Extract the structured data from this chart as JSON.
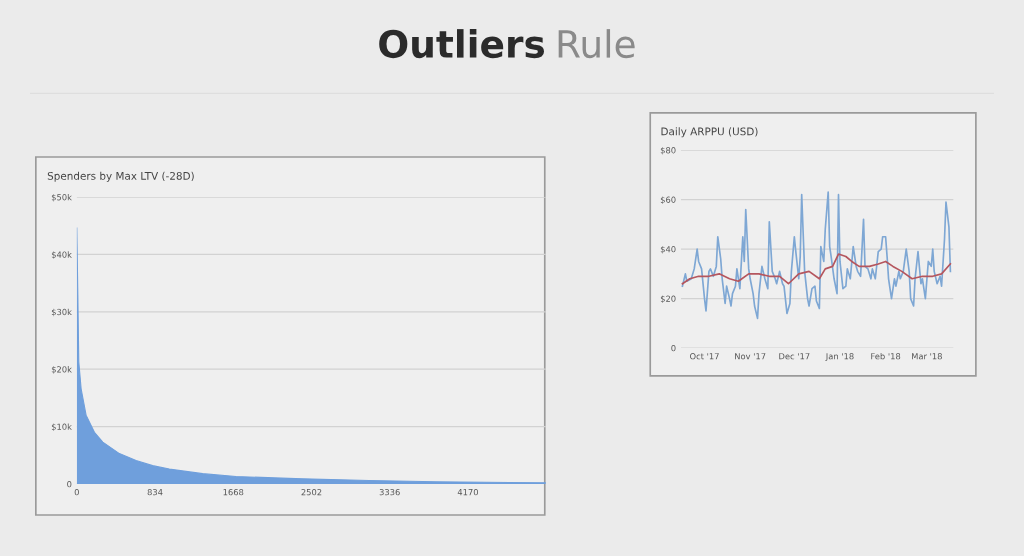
{
  "chart_data": [
    {
      "type": "other",
      "title": "Outliers",
      "subtitle": "Rule"
    },
    {
      "type": "area",
      "title": "Spenders by Max LTV (-28D)",
      "color": "#6f9fdc",
      "x": [
        0,
        11,
        21,
        46,
        99,
        188,
        277,
        454,
        632,
        809,
        987,
        1342,
        1697,
        2407,
        3117,
        3827,
        4998
      ],
      "values": [
        44600,
        33000,
        21300,
        16600,
        12000,
        9000,
        7300,
        5300,
        4100,
        3200,
        2600,
        1800,
        1300,
        900,
        600,
        400,
        200
      ],
      "xlim": [
        0,
        5000
      ],
      "xticks": [
        0,
        834,
        1668,
        2502,
        3336,
        4170
      ],
      "ylim": [
        0,
        50000
      ],
      "yticks": [
        0,
        {
          "value": 10000,
          "label": "$10k"
        },
        {
          "value": 20000,
          "label": "$20k"
        },
        {
          "value": 30000,
          "label": "$30k"
        },
        {
          "value": 40000,
          "label": "$40k"
        },
        {
          "value": 50000,
          "label": "$50k"
        }
      ],
      "grid": "y"
    },
    {
      "type": "line",
      "title": "Daily ARPPU (USD)",
      "grid": "y",
      "xlim": [
        "2017-09-29",
        "2018-04-02"
      ],
      "xticks": [
        {
          "value": "2017-10-15",
          "label": "Oct '17"
        },
        {
          "value": "2017-11-15",
          "label": "Nov '17"
        },
        {
          "value": "2017-12-15",
          "label": "Dec '17"
        },
        {
          "value": "2018-01-15",
          "label": "Jan '18"
        },
        {
          "value": "2018-02-15",
          "label": "Feb '18"
        },
        {
          "value": "2018-03-15",
          "label": "Mar '18"
        }
      ],
      "ylim": [
        0,
        80
      ],
      "yticks": [
        0,
        {
          "value": 20,
          "label": "$20"
        },
        {
          "value": 40,
          "label": "$40"
        },
        {
          "value": 60,
          "label": "$60"
        },
        {
          "value": 80,
          "label": "$80"
        }
      ],
      "series": [
        {
          "color": "#7ea7d4",
          "x": [
            "2017-09-30",
            "2017-10-02",
            "2017-10-03",
            "2017-10-06",
            "2017-10-08",
            "2017-10-10",
            "2017-10-11",
            "2017-10-13",
            "2017-10-15",
            "2017-10-16",
            "2017-10-18",
            "2017-10-19",
            "2017-10-21",
            "2017-10-23",
            "2017-10-24",
            "2017-10-26",
            "2017-10-27",
            "2017-10-29",
            "2017-10-30",
            "2017-11-01",
            "2017-11-02",
            "2017-11-03",
            "2017-11-05",
            "2017-11-06",
            "2017-11-08",
            "2017-11-10",
            "2017-11-11",
            "2017-11-12",
            "2017-11-14",
            "2017-11-15",
            "2017-11-17",
            "2017-11-18",
            "2017-11-20",
            "2017-11-21",
            "2017-11-23",
            "2017-11-25",
            "2017-11-27",
            "2017-11-28",
            "2017-11-30",
            "2017-12-02",
            "2017-12-03",
            "2017-12-05",
            "2017-12-07",
            "2017-12-08",
            "2017-12-10",
            "2017-12-12",
            "2017-12-13",
            "2017-12-15",
            "2017-12-16",
            "2017-12-18",
            "2017-12-19",
            "2017-12-20",
            "2017-12-22",
            "2017-12-24",
            "2017-12-25",
            "2017-12-27",
            "2017-12-29",
            "2017-12-30",
            "2018-01-01",
            "2018-01-02",
            "2018-01-04",
            "2018-01-05",
            "2018-01-07",
            "2018-01-08",
            "2018-01-09",
            "2018-01-11",
            "2018-01-13",
            "2018-01-14",
            "2018-01-15",
            "2018-01-17",
            "2018-01-19",
            "2018-01-20",
            "2018-01-22",
            "2018-01-24",
            "2018-01-26",
            "2018-01-27",
            "2018-01-29",
            "2018-01-31",
            "2018-02-01",
            "2018-02-03",
            "2018-02-05",
            "2018-02-06",
            "2018-02-08",
            "2018-02-10",
            "2018-02-12",
            "2018-02-13",
            "2018-02-15",
            "2018-02-16",
            "2018-02-17",
            "2018-02-19",
            "2018-02-21",
            "2018-02-22",
            "2018-02-24",
            "2018-02-25",
            "2018-02-27",
            "2018-03-01",
            "2018-03-03",
            "2018-03-04",
            "2018-03-06",
            "2018-03-07",
            "2018-03-09",
            "2018-03-11",
            "2018-03-12",
            "2018-03-14",
            "2018-03-16",
            "2018-03-18",
            "2018-03-19",
            "2018-03-20",
            "2018-03-22",
            "2018-03-24",
            "2018-03-25",
            "2018-03-27",
            "2018-03-28",
            "2018-03-30",
            "2018-03-31"
          ],
          "values": [
            25,
            30,
            27,
            28,
            32,
            40,
            35,
            32,
            20,
            15,
            31,
            32,
            29,
            33,
            45,
            36,
            28,
            18,
            25,
            20,
            17,
            22,
            25,
            32,
            24,
            45,
            35,
            56,
            32,
            28,
            22,
            17,
            12,
            22,
            33,
            28,
            24,
            51,
            31,
            28,
            26,
            31,
            26,
            25,
            14,
            18,
            31,
            45,
            39,
            28,
            37,
            62,
            31,
            20,
            17,
            24,
            25,
            19,
            16,
            41,
            35,
            48,
            63,
            41,
            37,
            28,
            22,
            62,
            35,
            24,
            25,
            32,
            28,
            41,
            33,
            31,
            29,
            52,
            33,
            32,
            28,
            32,
            28,
            39,
            40,
            45,
            45,
            37,
            28,
            20,
            28,
            25,
            31,
            28,
            31,
            40,
            31,
            20,
            17,
            28,
            39,
            26,
            28,
            20,
            35,
            33,
            40,
            31,
            26,
            29,
            25,
            44,
            59,
            49,
            31
          ]
        },
        {
          "color": "#b5565e",
          "x": [
            "2017-09-30",
            "2017-10-05",
            "2017-10-11",
            "2017-10-18",
            "2017-10-25",
            "2017-11-01",
            "2017-11-07",
            "2017-11-14",
            "2017-11-21",
            "2017-11-28",
            "2017-12-05",
            "2017-12-11",
            "2017-12-18",
            "2017-12-25",
            "2018-01-01",
            "2018-01-05",
            "2018-01-10",
            "2018-01-14",
            "2018-01-19",
            "2018-01-23",
            "2018-01-28",
            "2018-02-04",
            "2018-02-10",
            "2018-02-15",
            "2018-02-20",
            "2018-02-26",
            "2018-03-05",
            "2018-03-12",
            "2018-03-19",
            "2018-03-25",
            "2018-03-31"
          ],
          "values": [
            26,
            28,
            29,
            29,
            30,
            28,
            27,
            30,
            30,
            29,
            29,
            26,
            30,
            31,
            28,
            32,
            33,
            38,
            37,
            35,
            33,
            33,
            34,
            35,
            33,
            31,
            28,
            29,
            29,
            30,
            34
          ]
        }
      ]
    }
  ]
}
